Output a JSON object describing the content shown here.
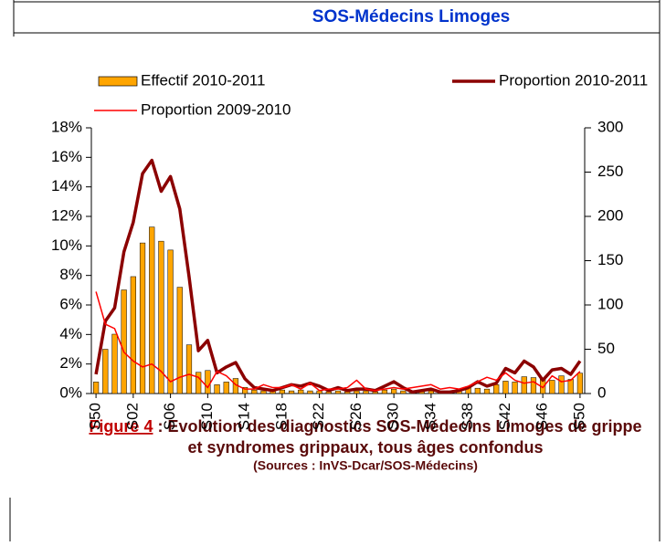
{
  "header": {
    "title": "SOS-Médecins Limoges"
  },
  "caption": {
    "label": "Figure 4",
    "line1": " : Evolution des diagnostics SOS-Médecins Limoges de grippe",
    "line2": "et syndromes grippaux, tous âges confondus",
    "source": "(Sources : InVS-Dcar/SOS-Médecins)"
  },
  "chart_data": {
    "type": "combo",
    "categories": [
      "S50",
      null,
      null,
      null,
      "S02",
      null,
      null,
      null,
      "S06",
      null,
      null,
      null,
      "S10",
      null,
      null,
      null,
      "S14",
      null,
      null,
      null,
      "S18",
      null,
      null,
      null,
      "S22",
      null,
      null,
      null,
      "S26",
      null,
      null,
      null,
      "S30",
      null,
      null,
      null,
      "S34",
      null,
      null,
      null,
      "S38",
      null,
      null,
      null,
      "S42",
      null,
      null,
      null,
      "S46",
      null,
      null,
      null,
      "S50"
    ],
    "series": [
      {
        "name": "Effectif 2010-2011",
        "type": "bar",
        "axis": "y2",
        "color": "#ffa500",
        "values": [
          13,
          50,
          67,
          117,
          132,
          170,
          188,
          172,
          162,
          120,
          55,
          24,
          26,
          10,
          13,
          17,
          7,
          4,
          3,
          3,
          4,
          3,
          4,
          3,
          3,
          2,
          3,
          2,
          3,
          3,
          2,
          4,
          5,
          3,
          1,
          2,
          3,
          2,
          1,
          3,
          8,
          6,
          5,
          10,
          14,
          13,
          19,
          18,
          16,
          15,
          20,
          16,
          23
        ]
      },
      {
        "name": "Proportion 2010-2011",
        "type": "line",
        "color": "#8b0000",
        "width": 3.5,
        "values": [
          1.3,
          4.9,
          5.8,
          9.6,
          11.6,
          14.9,
          15.8,
          13.7,
          14.7,
          12.5,
          7.9,
          2.9,
          3.6,
          1.4,
          1.8,
          2.1,
          1.0,
          0.4,
          0.3,
          0.2,
          0.4,
          0.6,
          0.5,
          0.7,
          0.5,
          0.2,
          0.4,
          0.2,
          0.3,
          0.3,
          0.2,
          0.5,
          0.8,
          0.4,
          0.1,
          0.2,
          0.3,
          0.1,
          0.1,
          0.2,
          0.4,
          0.8,
          0.5,
          0.7,
          1.7,
          1.4,
          2.2,
          1.8,
          0.9,
          1.6,
          1.7,
          1.3,
          2.2
        ]
      },
      {
        "name": "Proportion 2009-2010",
        "type": "line",
        "color": "#ff0000",
        "width": 1.5,
        "values": [
          6.9,
          4.7,
          4.4,
          2.8,
          2.2,
          1.8,
          2.0,
          1.5,
          0.8,
          1.1,
          1.3,
          1.1,
          0.4,
          1.5,
          1.2,
          0.6,
          0.3,
          0.3,
          0.6,
          0.4,
          0.4,
          0.6,
          0.3,
          0.7,
          0.2,
          0.3,
          0.3,
          0.4,
          0.9,
          0.3,
          0.2,
          0.3,
          0.4,
          0.3,
          0.4,
          0.5,
          0.6,
          0.3,
          0.4,
          0.3,
          0.5,
          0.8,
          1.1,
          0.9,
          1.4,
          0.9,
          0.7,
          0.8,
          0.4,
          1.2,
          0.8,
          0.9,
          1.5
        ]
      }
    ],
    "ylim": [
      0,
      18
    ],
    "yticks": [
      {
        "value": 0,
        "label": "0%"
      },
      {
        "value": 2,
        "label": "2%"
      },
      {
        "value": 4,
        "label": "4%"
      },
      {
        "value": 6,
        "label": "6%"
      },
      {
        "value": 8,
        "label": "8%"
      },
      {
        "value": 10,
        "label": "10%"
      },
      {
        "value": 12,
        "label": "12%"
      },
      {
        "value": 14,
        "label": "14%"
      },
      {
        "value": 16,
        "label": "16%"
      },
      {
        "value": 18,
        "label": "18%"
      }
    ],
    "y2lim": [
      0,
      300
    ],
    "y2ticks": [
      0,
      50,
      100,
      150,
      200,
      250,
      300
    ],
    "legend": "top"
  }
}
